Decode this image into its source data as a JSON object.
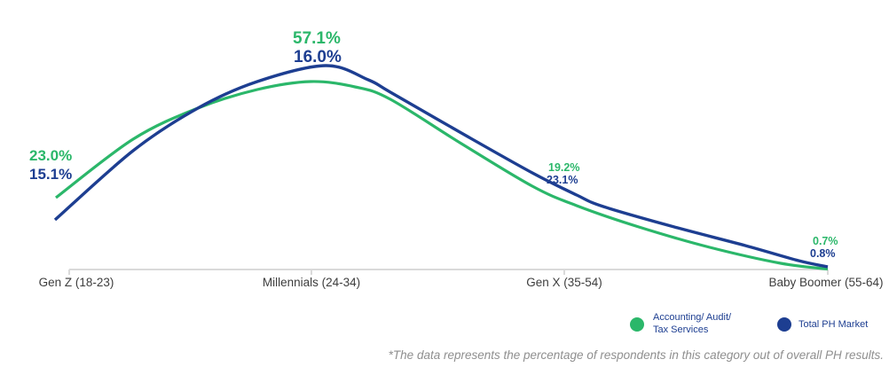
{
  "chart_data": {
    "type": "line",
    "title": "",
    "xlabel": "",
    "ylabel": "",
    "grid": false,
    "legend_position": "bottom-right",
    "categories": [
      "Gen Z (18-23)",
      "Millennials (24-34)",
      "Gen X (35-54)",
      "Baby Boomer (55-64)"
    ],
    "series": [
      {
        "name": "Accounting/ Audit/ Tax Services",
        "color": "#2bb76a",
        "values": [
          23.0,
          57.1,
          19.2,
          0.7
        ]
      },
      {
        "name": "Total PH Market",
        "color": "#1d3e91",
        "values": [
          15.1,
          16.0,
          23.1,
          0.8
        ]
      }
    ],
    "point_labels": [
      {
        "accounting": "23.0%",
        "total": "15.1%"
      },
      {
        "accounting": "57.1%",
        "total": "16.0%"
      },
      {
        "accounting": "19.2%",
        "total": "23.1%"
      },
      {
        "accounting": "0.7%",
        "total": "0.8%"
      }
    ]
  },
  "legend": {
    "accounting_line1": "Accounting/ Audit/",
    "accounting_line2": "Tax Services",
    "total": "Total PH Market"
  },
  "footnote": "*The data represents the percentage of respondents in this category out of overall PH results.",
  "colors": {
    "green": "#2bb76a",
    "navy": "#1d3e91",
    "axis_line": "#dadada",
    "axis_text": "#3d3d3d",
    "footnote_text": "#8f8f8f"
  }
}
